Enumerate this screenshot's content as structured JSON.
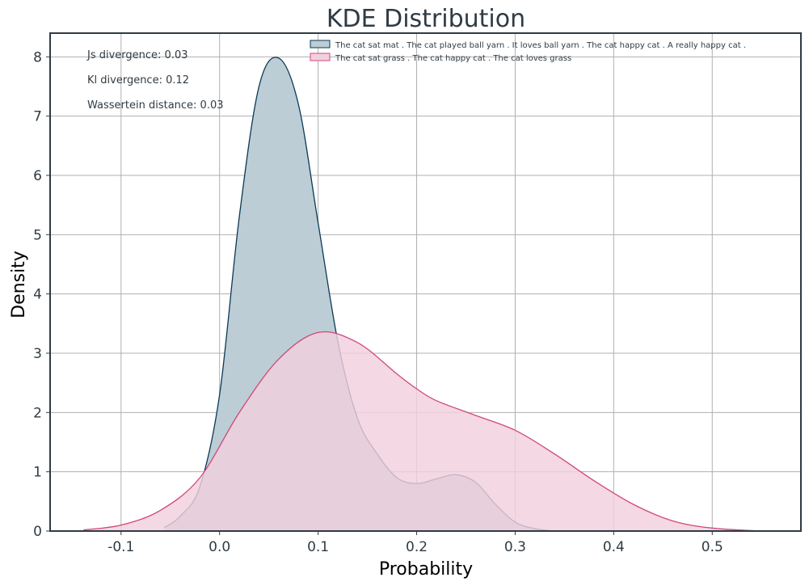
{
  "chart_data": {
    "type": "area",
    "title": "KDE Distribution",
    "xlabel": "Probability",
    "ylabel": "Density",
    "xlim": [
      -0.172,
      0.59
    ],
    "ylim": [
      0,
      8.4
    ],
    "xticks": [
      -0.1,
      0.0,
      0.1,
      0.2,
      0.3,
      0.4,
      0.5
    ],
    "xtick_labels": [
      "-0.1",
      "0.0",
      "0.1",
      "0.2",
      "0.3",
      "0.4",
      "0.5"
    ],
    "yticks": [
      0,
      1,
      2,
      3,
      4,
      5,
      6,
      7,
      8
    ],
    "ytick_labels": [
      "0",
      "1",
      "2",
      "3",
      "4",
      "5",
      "6",
      "7",
      "8"
    ],
    "grid": true,
    "legend_position": "top-right",
    "annotations": [
      "Js divergence: 0.03",
      "Kl divergence: 0.12",
      "Wassertein distance: 0.03"
    ],
    "series": [
      {
        "name": "The cat sat mat . The cat played ball yarn . It loves ball yarn . The cat happy cat . A really happy cat .",
        "fill_color": "#bccdd6",
        "line_color": "#0b3954",
        "x": [
          -0.056,
          -0.04,
          -0.02,
          0.0,
          0.02,
          0.04,
          0.06,
          0.08,
          0.1,
          0.12,
          0.14,
          0.16,
          0.18,
          0.2,
          0.22,
          0.24,
          0.26,
          0.28,
          0.3,
          0.32,
          0.34
        ],
        "y": [
          0.06,
          0.25,
          0.75,
          2.3,
          5.3,
          7.5,
          7.98,
          7.2,
          5.2,
          3.2,
          1.9,
          1.3,
          0.9,
          0.8,
          0.88,
          0.95,
          0.82,
          0.45,
          0.15,
          0.04,
          0.0
        ]
      },
      {
        "name": "The cat sat grass . The cat happy cat . The cat loves grass",
        "fill_color": "#f2d0dd",
        "line_color": "#d1477a",
        "x": [
          -0.138,
          -0.1,
          -0.06,
          -0.02,
          0.02,
          0.06,
          0.1,
          0.14,
          0.18,
          0.2,
          0.22,
          0.26,
          0.3,
          0.34,
          0.38,
          0.42,
          0.46,
          0.5,
          0.55
        ],
        "y": [
          0.02,
          0.1,
          0.35,
          0.9,
          2.0,
          2.9,
          3.35,
          3.18,
          2.65,
          2.4,
          2.2,
          1.95,
          1.7,
          1.3,
          0.85,
          0.45,
          0.17,
          0.05,
          0.0
        ]
      }
    ]
  }
}
